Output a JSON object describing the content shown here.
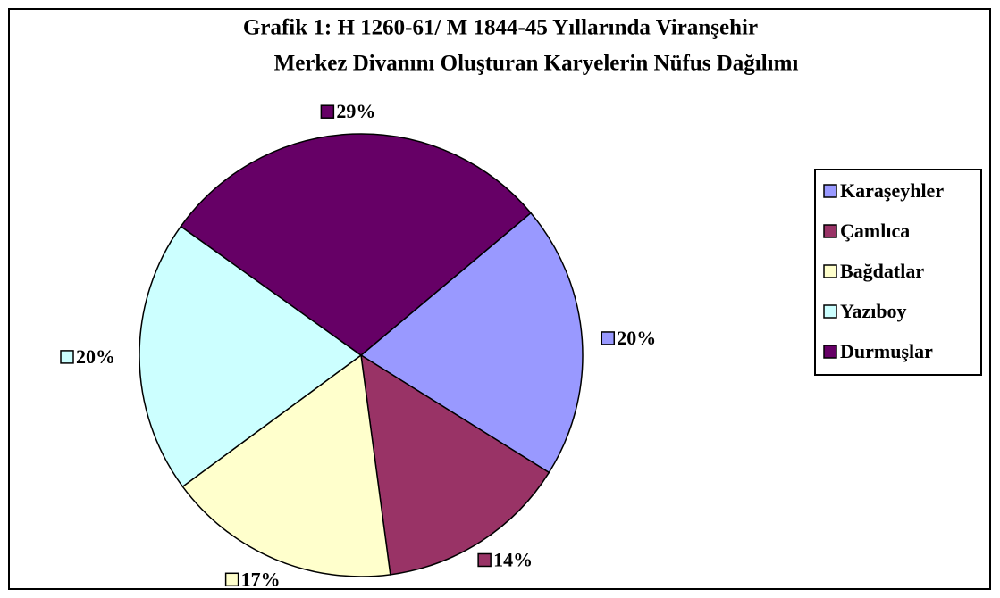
{
  "chart_data": {
    "type": "pie",
    "title": [
      "Grafik 1: H 1260-61/ M 1844-45 Yıllarında Viranşehir",
      "Merkez Divanını Oluşturan Karyelerin Nüfus Dağılımı"
    ],
    "categories": [
      "Karaşeyhler",
      "Çamlıca",
      "Bağdatlar",
      "Yazıboy",
      "Durmuşlar"
    ],
    "values": [
      20,
      14,
      17,
      20,
      29
    ],
    "value_labels": [
      "20%",
      "14%",
      "17%",
      "20%",
      "29%"
    ],
    "colors": [
      "#9999ff",
      "#993366",
      "#ffffcc",
      "#ccffff",
      "#660066"
    ],
    "legend": "right"
  }
}
